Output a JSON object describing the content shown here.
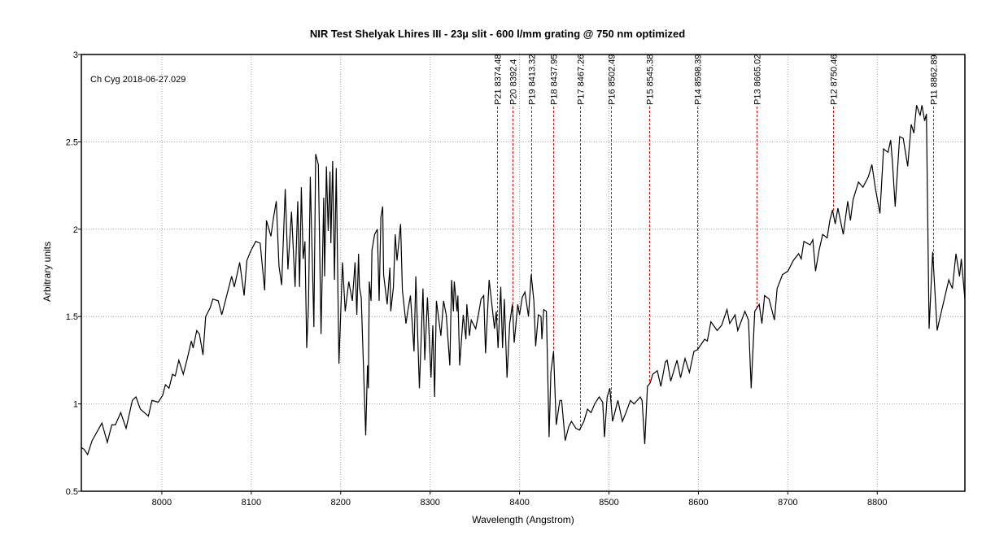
{
  "chart_data": {
    "type": "line",
    "title": "NIR Test Shelyak Lhires III - 23µ slit - 600 l/mm grating @ 750 nm optimized",
    "xlabel": "Wavelength (Angstrom)",
    "ylabel": "Arbitrary units",
    "annotation": "Ch Cyg  2018-06-27.029",
    "xlim": [
      7910,
      8898
    ],
    "ylim": [
      0.5,
      3
    ],
    "xticks": [
      8000,
      8100,
      8200,
      8300,
      8400,
      8500,
      8600,
      8700,
      8800
    ],
    "yticks": [
      0.5,
      1,
      1.5,
      2,
      2.5,
      3
    ],
    "ytick_labels": [
      "0.5",
      "1",
      "1.5",
      "2",
      "2.5",
      "3"
    ],
    "grid": true,
    "colors": {
      "spectrum": "#000000",
      "markers": "#ff0000",
      "grid": "#a0a0a0"
    },
    "markers": [
      {
        "label": "P21 8374.48",
        "x": 8374.48
      },
      {
        "label": "P20 8392.4",
        "x": 8392.4
      },
      {
        "label": "P19 8413.32",
        "x": 8413.32
      },
      {
        "label": "P18 8437.95",
        "x": 8437.95
      },
      {
        "label": "P17 8467.26",
        "x": 8467.26
      },
      {
        "label": "P16 8502.49",
        "x": 8502.49
      },
      {
        "label": "P15 8545.38",
        "x": 8545.38
      },
      {
        "label": "P14 8598.39",
        "x": 8598.39
      },
      {
        "label": "P13 8665.02",
        "x": 8665.02
      },
      {
        "label": "P12 8750.46",
        "x": 8750.46
      },
      {
        "label": "P11 8862.89",
        "x": 8862.89
      }
    ],
    "series": [
      {
        "points": [
          [
            7910,
            0.75
          ],
          [
            7913,
            0.74
          ],
          [
            7917,
            0.71
          ],
          [
            7922,
            0.79
          ],
          [
            7933,
            0.89
          ],
          [
            7939,
            0.78
          ],
          [
            7944,
            0.88
          ],
          [
            7948,
            0.88
          ],
          [
            7954,
            0.95
          ],
          [
            7960,
            0.86
          ],
          [
            7967,
            1.02
          ],
          [
            7971,
            1.04
          ],
          [
            7976,
            0.97
          ],
          [
            7985,
            0.93
          ],
          [
            7989,
            1.02
          ],
          [
            7996,
            1.01
          ],
          [
            8001,
            1.05
          ],
          [
            8004,
            1.11
          ],
          [
            8008,
            1.09
          ],
          [
            8012,
            1.17
          ],
          [
            8015,
            1.16
          ],
          [
            8019,
            1.25
          ],
          [
            8024,
            1.17
          ],
          [
            8028,
            1.25
          ],
          [
            8033,
            1.36
          ],
          [
            8035,
            1.32
          ],
          [
            8039,
            1.42
          ],
          [
            8042,
            1.4
          ],
          [
            8046,
            1.28
          ],
          [
            8049,
            1.5
          ],
          [
            8054,
            1.55
          ],
          [
            8057,
            1.6
          ],
          [
            8063,
            1.59
          ],
          [
            8067,
            1.51
          ],
          [
            8074,
            1.65
          ],
          [
            8078,
            1.73
          ],
          [
            8081,
            1.67
          ],
          [
            8087,
            1.81
          ],
          [
            8092,
            1.62
          ],
          [
            8095,
            1.82
          ],
          [
            8099,
            1.87
          ],
          [
            8105,
            1.93
          ],
          [
            8110,
            1.92
          ],
          [
            8115,
            1.65
          ],
          [
            8117,
            2.05
          ],
          [
            8122,
            1.96
          ],
          [
            8125,
            2.07
          ],
          [
            8128,
            2.16
          ],
          [
            8131,
            1.79
          ],
          [
            8134,
            1.68
          ],
          [
            8138,
            2.23
          ],
          [
            8141,
            1.77
          ],
          [
            8145,
            2.1
          ],
          [
            8149,
            1.67
          ],
          [
            8152,
            2.16
          ],
          [
            8154,
            1.67
          ],
          [
            8156,
            2.24
          ],
          [
            8158,
            1.83
          ],
          [
            8160,
            1.93
          ],
          [
            8162,
            1.32
          ],
          [
            8164,
            1.57
          ],
          [
            8166,
            2.3
          ],
          [
            8170,
            1.44
          ],
          [
            8172,
            2.43
          ],
          [
            8175,
            2.37
          ],
          [
            8178,
            1.4
          ],
          [
            8181,
            2.18
          ],
          [
            8182,
            1.73
          ],
          [
            8184,
            2.36
          ],
          [
            8186,
            1.99
          ],
          [
            8188,
            2.33
          ],
          [
            8189,
            1.92
          ],
          [
            8191,
            2.39
          ],
          [
            8193,
            1.71
          ],
          [
            8195,
            2.35
          ],
          [
            8198,
            1.23
          ],
          [
            8202,
            1.81
          ],
          [
            8205,
            1.53
          ],
          [
            8209,
            1.7
          ],
          [
            8213,
            1.59
          ],
          [
            8216,
            1.81
          ],
          [
            8218,
            1.51
          ],
          [
            8220,
            1.86
          ],
          [
            8221,
            1.67
          ],
          [
            8223,
            1.61
          ],
          [
            8228,
            0.82
          ],
          [
            8230,
            1.22
          ],
          [
            8231,
            1.09
          ],
          [
            8232,
            1.7
          ],
          [
            8234,
            1.59
          ],
          [
            8235,
            1.88
          ],
          [
            8238,
            1.97
          ],
          [
            8241,
            2.0
          ],
          [
            8243,
            1.59
          ],
          [
            8245,
            2.07
          ],
          [
            8247,
            2.13
          ],
          [
            8248,
            1.74
          ],
          [
            8252,
            1.57
          ],
          [
            8255,
            1.78
          ],
          [
            8256,
            1.53
          ],
          [
            8259,
            1.67
          ],
          [
            8261,
            1.97
          ],
          [
            8263,
            1.82
          ],
          [
            8267,
            2.03
          ],
          [
            8269,
            1.65
          ],
          [
            8273,
            1.46
          ],
          [
            8275,
            1.53
          ],
          [
            8278,
            1.62
          ],
          [
            8282,
            1.3
          ],
          [
            8284,
            1.73
          ],
          [
            8288,
            1.09
          ],
          [
            8292,
            1.66
          ],
          [
            8294,
            1.25
          ],
          [
            8297,
            1.61
          ],
          [
            8301,
            1.15
          ],
          [
            8303,
            1.45
          ],
          [
            8305,
            1.04
          ],
          [
            8307,
            1.59
          ],
          [
            8312,
            1.39
          ],
          [
            8315,
            1.59
          ],
          [
            8318,
            1.51
          ],
          [
            8322,
            1.22
          ],
          [
            8324,
            1.71
          ],
          [
            8326,
            1.53
          ],
          [
            8327,
            1.7
          ],
          [
            8330,
            1.53
          ],
          [
            8331,
            1.62
          ],
          [
            8333,
            1.22
          ],
          [
            8337,
            1.51
          ],
          [
            8340,
            1.37
          ],
          [
            8341,
            1.57
          ],
          [
            8344,
            1.39
          ],
          [
            8346,
            1.48
          ],
          [
            8351,
            1.43
          ],
          [
            8354,
            1.51
          ],
          [
            8357,
            1.6
          ],
          [
            8360,
            1.62
          ],
          [
            8362,
            1.29
          ],
          [
            8366,
            1.71
          ],
          [
            8368,
            1.62
          ],
          [
            8372,
            1.43
          ],
          [
            8374,
            1.53
          ],
          [
            8376,
            1.32
          ],
          [
            8379,
            1.67
          ],
          [
            8381,
            1.32
          ],
          [
            8383,
            1.6
          ],
          [
            8386,
            1.15
          ],
          [
            8389,
            1.46
          ],
          [
            8392,
            1.57
          ],
          [
            8394,
            1.35
          ],
          [
            8398,
            1.57
          ],
          [
            8400,
            1.51
          ],
          [
            8403,
            1.61
          ],
          [
            8406,
            1.64
          ],
          [
            8410,
            1.5
          ],
          [
            8413,
            1.74
          ],
          [
            8416,
            1.59
          ],
          [
            8418,
            1.33
          ],
          [
            8421,
            1.51
          ],
          [
            8424,
            1.5
          ],
          [
            8425,
            1.37
          ],
          [
            8427,
            1.54
          ],
          [
            8430,
            1.53
          ],
          [
            8433,
            0.81
          ],
          [
            8435,
            1.18
          ],
          [
            8438,
            1.3
          ],
          [
            8441,
            0.88
          ],
          [
            8445,
            1.02
          ],
          [
            8447,
            1.02
          ],
          [
            8451,
            0.79
          ],
          [
            8455,
            0.87
          ],
          [
            8458,
            0.9
          ],
          [
            8463,
            0.86
          ],
          [
            8467,
            0.85
          ],
          [
            8472,
            0.9
          ],
          [
            8476,
            0.97
          ],
          [
            8480,
            0.95
          ],
          [
            8484,
            1.0
          ],
          [
            8489,
            1.04
          ],
          [
            8493,
            1.01
          ],
          [
            8495,
            0.81
          ],
          [
            8498,
            1.04
          ],
          [
            8501,
            1.09
          ],
          [
            8504,
            0.9
          ],
          [
            8510,
            1.02
          ],
          [
            8515,
            0.9
          ],
          [
            8519,
            0.95
          ],
          [
            8524,
            1.02
          ],
          [
            8528,
            1.0
          ],
          [
            8535,
            1.04
          ],
          [
            8537,
            1.02
          ],
          [
            8540,
            0.77
          ],
          [
            8543,
            1.1
          ],
          [
            8546,
            1.12
          ],
          [
            8549,
            1.17
          ],
          [
            8554,
            1.19
          ],
          [
            8558,
            1.1
          ],
          [
            8563,
            1.24
          ],
          [
            8565,
            1.25
          ],
          [
            8569,
            1.13
          ],
          [
            8576,
            1.25
          ],
          [
            8580,
            1.15
          ],
          [
            8585,
            1.26
          ],
          [
            8590,
            1.18
          ],
          [
            8595,
            1.3
          ],
          [
            8599,
            1.31
          ],
          [
            8607,
            1.37
          ],
          [
            8610,
            1.36
          ],
          [
            8614,
            1.47
          ],
          [
            8621,
            1.42
          ],
          [
            8626,
            1.45
          ],
          [
            8632,
            1.54
          ],
          [
            8635,
            1.46
          ],
          [
            8641,
            1.51
          ],
          [
            8644,
            1.42
          ],
          [
            8652,
            1.53
          ],
          [
            8656,
            1.48
          ],
          [
            8659,
            1.09
          ],
          [
            8663,
            1.53
          ],
          [
            8668,
            1.57
          ],
          [
            8671,
            1.46
          ],
          [
            8674,
            1.62
          ],
          [
            8679,
            1.6
          ],
          [
            8685,
            1.48
          ],
          [
            8688,
            1.66
          ],
          [
            8694,
            1.74
          ],
          [
            8700,
            1.76
          ],
          [
            8706,
            1.82
          ],
          [
            8712,
            1.86
          ],
          [
            8715,
            1.83
          ],
          [
            8718,
            1.93
          ],
          [
            8725,
            1.91
          ],
          [
            8728,
            1.94
          ],
          [
            8731,
            1.76
          ],
          [
            8735,
            1.88
          ],
          [
            8739,
            1.97
          ],
          [
            8744,
            1.95
          ],
          [
            8747,
            2.05
          ],
          [
            8750,
            2.11
          ],
          [
            8753,
            2.03
          ],
          [
            8756,
            2.12
          ],
          [
            8762,
            1.97
          ],
          [
            8767,
            2.16
          ],
          [
            8770,
            2.05
          ],
          [
            8773,
            2.17
          ],
          [
            8779,
            2.27
          ],
          [
            8784,
            2.24
          ],
          [
            8790,
            2.3
          ],
          [
            8794,
            2.37
          ],
          [
            8798,
            2.23
          ],
          [
            8803,
            2.09
          ],
          [
            8807,
            2.46
          ],
          [
            8812,
            2.44
          ],
          [
            8815,
            2.51
          ],
          [
            8817,
            2.38
          ],
          [
            8820,
            2.13
          ],
          [
            8825,
            2.53
          ],
          [
            8829,
            2.52
          ],
          [
            8834,
            2.36
          ],
          [
            8838,
            2.6
          ],
          [
            8841,
            2.55
          ],
          [
            8844,
            2.71
          ],
          [
            8848,
            2.65
          ],
          [
            8850,
            2.71
          ],
          [
            8853,
            2.62
          ],
          [
            8855,
            2.66
          ],
          [
            8858,
            1.43
          ],
          [
            8862,
            1.87
          ],
          [
            8867,
            1.42
          ],
          [
            8870,
            1.49
          ],
          [
            8875,
            1.6
          ],
          [
            8880,
            1.71
          ],
          [
            8884,
            1.66
          ],
          [
            8888,
            1.86
          ],
          [
            8892,
            1.73
          ],
          [
            8894,
            1.83
          ],
          [
            8898,
            1.6
          ]
        ]
      }
    ]
  }
}
